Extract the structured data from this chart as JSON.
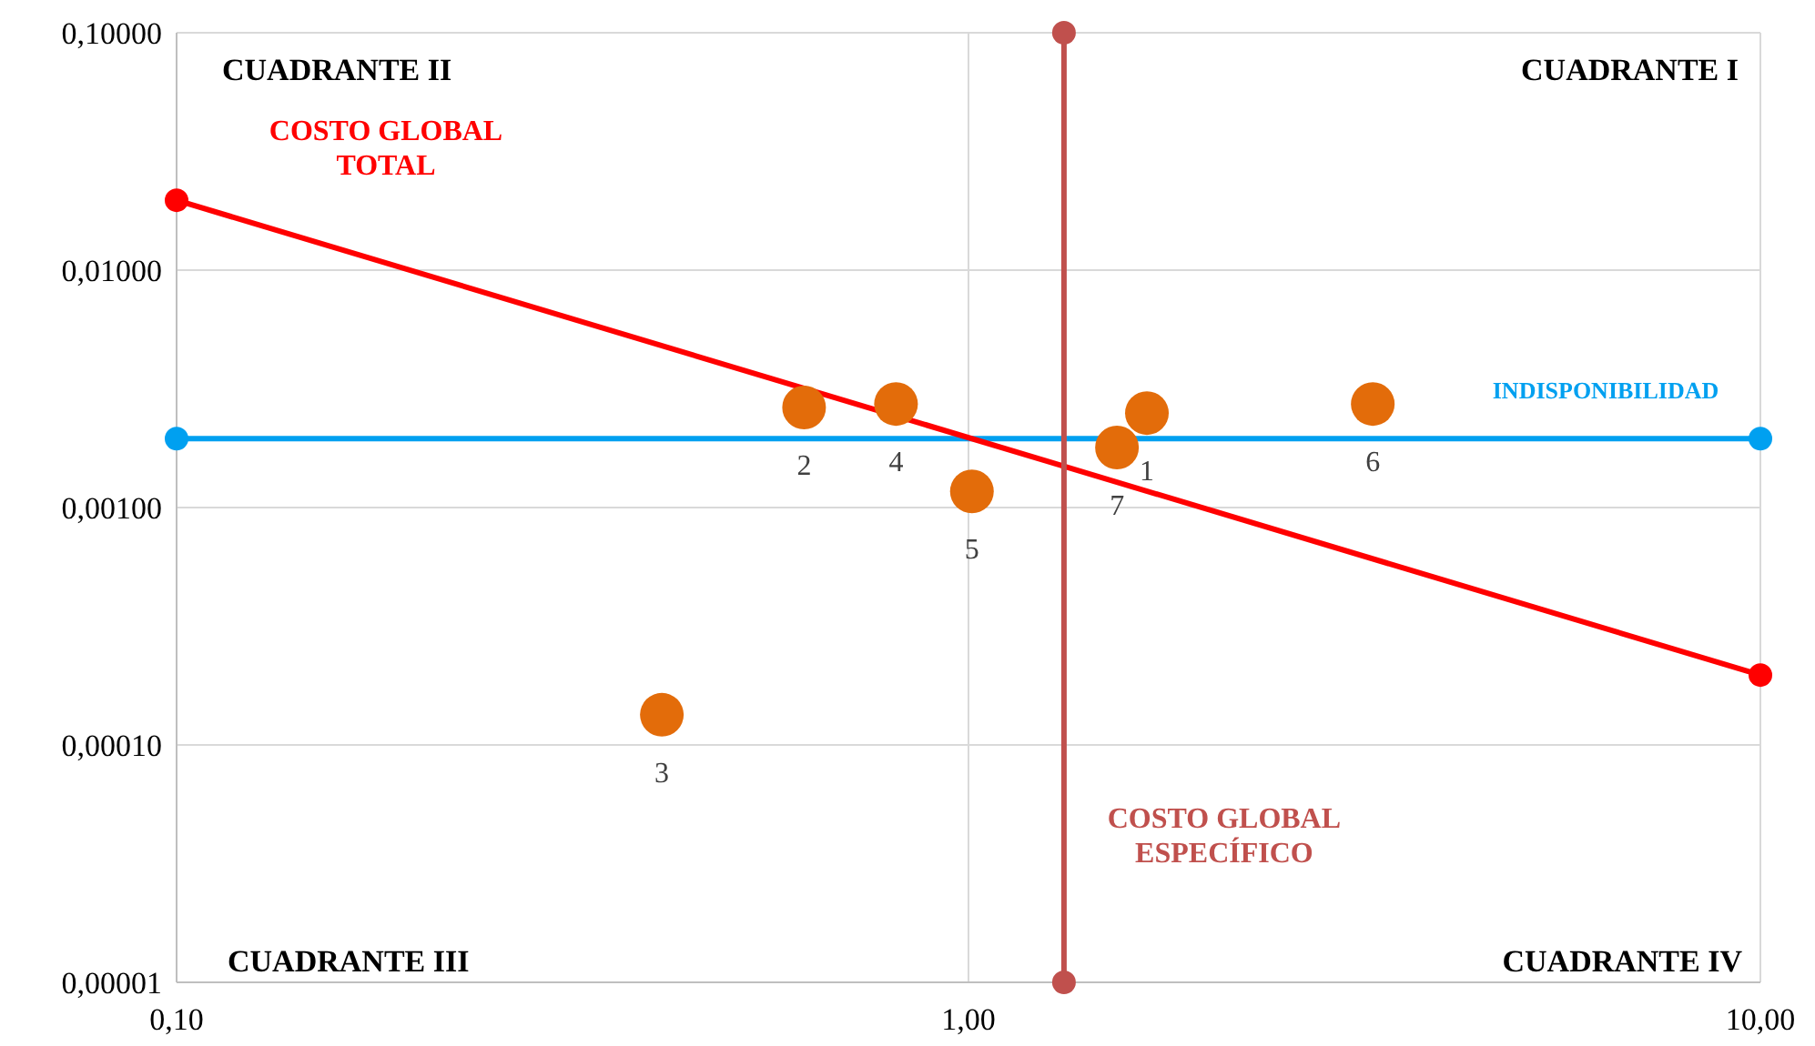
{
  "chart_data": {
    "type": "scatter",
    "log": "xy",
    "grid": true,
    "marker": "circle",
    "xlim": [
      0.1,
      10
    ],
    "xticks": [
      {
        "value": 0.1,
        "label": "0,10"
      },
      {
        "value": 1,
        "label": "1,00"
      },
      {
        "value": 10,
        "label": "10,00"
      }
    ],
    "ylim": [
      1e-05,
      0.1
    ],
    "yticks": [
      {
        "value": 1e-05,
        "label": "0,00001"
      },
      {
        "value": 0.0001,
        "label": "0,00010"
      },
      {
        "value": 0.001,
        "label": "0,00100"
      },
      {
        "value": 0.01,
        "label": "0,01000"
      },
      {
        "value": 0.1,
        "label": "0,10000"
      }
    ],
    "series": [
      {
        "color": "#e36c0a",
        "x": [
          1.68,
          0.62,
          0.41,
          0.81,
          1.01,
          3.24,
          1.54
        ],
        "values": [
          0.0025,
          0.00264,
          0.000134,
          0.00273,
          0.00117,
          0.00273,
          0.00179
        ]
      },
      {
        "type": "line",
        "name": "INDISPONIBILIDAD",
        "color": "#00a0f0",
        "x": [
          0.1,
          10
        ],
        "values": [
          0.00195,
          0.00195
        ]
      },
      {
        "type": "line",
        "name": "COSTO GLOBAL TOTAL",
        "color": "#ff0000",
        "x": [
          0.1,
          10
        ],
        "values": [
          0.0197,
          0.000197
        ]
      },
      {
        "type": "line",
        "name": "COSTO GLOBAL ESPECÍFICO",
        "color": "#c0504d",
        "x": [
          1.32,
          1.32
        ],
        "values": [
          0.1,
          1e-05
        ]
      }
    ],
    "annotations": [
      "CUADRANTE II",
      "CUADRANTE I",
      "CUADRANTE III",
      "CUADRANTE IV",
      {
        "text": "1",
        "x": 1.68,
        "y": 0.0025
      },
      {
        "text": "2",
        "x": 0.62,
        "y": 0.00264
      },
      {
        "text": "3",
        "x": 0.41,
        "y": 0.000134
      },
      {
        "text": "4",
        "x": 0.81,
        "y": 0.00273
      },
      {
        "text": "5",
        "x": 1.01,
        "y": 0.00117
      },
      {
        "text": "6",
        "x": 3.24,
        "y": 0.00273
      },
      {
        "text": "7",
        "x": 1.54,
        "y": 0.00179
      }
    ]
  }
}
